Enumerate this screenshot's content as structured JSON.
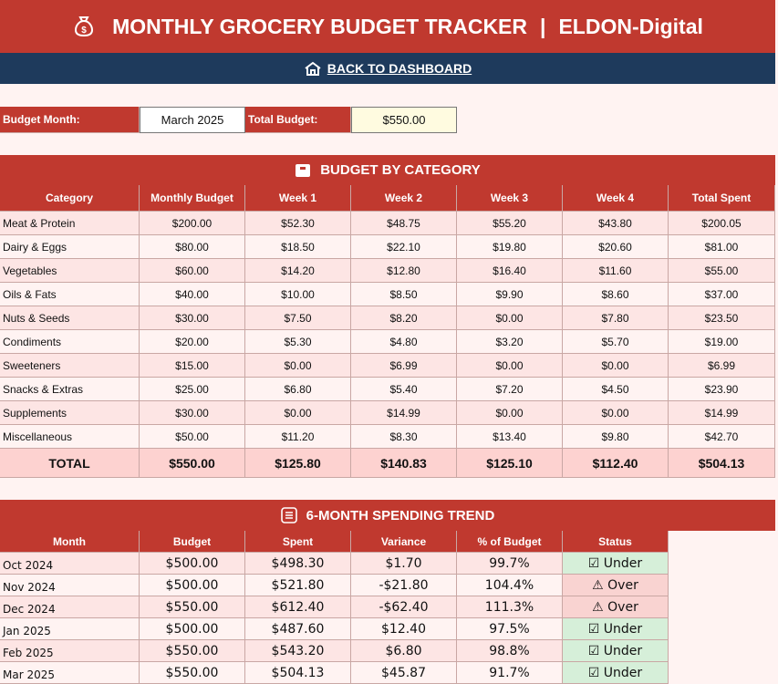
{
  "header": {
    "title": "MONTHLY GROCERY BUDGET TRACKER",
    "separator": "|",
    "brand": "ELDON-Digital"
  },
  "nav": {
    "link": "BACK TO DASHBOARD"
  },
  "budget_info": {
    "month_label": "Budget Month:",
    "month": "March 2025",
    "total_label": "Total Budget:",
    "total": "$550.00"
  },
  "category": {
    "title": "BUDGET BY CATEGORY",
    "columns": [
      "Category",
      "Monthly Budget",
      "Week 1",
      "Week 2",
      "Week 3",
      "Week 4",
      "Total Spent"
    ],
    "rows": [
      [
        "Meat & Protein",
        "$200.00",
        "$52.30",
        "$48.75",
        "$55.20",
        "$43.80",
        "$200.05"
      ],
      [
        "Dairy & Eggs",
        "$80.00",
        "$18.50",
        "$22.10",
        "$19.80",
        "$20.60",
        "$81.00"
      ],
      [
        "Vegetables",
        "$60.00",
        "$14.20",
        "$12.80",
        "$16.40",
        "$11.60",
        "$55.00"
      ],
      [
        "Oils & Fats",
        "$40.00",
        "$10.00",
        "$8.50",
        "$9.90",
        "$8.60",
        "$37.00"
      ],
      [
        "Nuts & Seeds",
        "$30.00",
        "$7.50",
        "$8.20",
        "$0.00",
        "$7.80",
        "$23.50"
      ],
      [
        "Condiments",
        "$20.00",
        "$5.30",
        "$4.80",
        "$3.20",
        "$5.70",
        "$19.00"
      ],
      [
        "Sweeteners",
        "$15.00",
        "$0.00",
        "$6.99",
        "$0.00",
        "$0.00",
        "$6.99"
      ],
      [
        "Snacks & Extras",
        "$25.00",
        "$6.80",
        "$5.40",
        "$7.20",
        "$4.50",
        "$23.90"
      ],
      [
        "Supplements",
        "$30.00",
        "$0.00",
        "$14.99",
        "$0.00",
        "$0.00",
        "$14.99"
      ],
      [
        "Miscellaneous",
        "$50.00",
        "$11.20",
        "$8.30",
        "$13.40",
        "$9.80",
        "$42.70"
      ]
    ],
    "total": [
      "TOTAL",
      "$550.00",
      "$125.80",
      "$140.83",
      "$125.10",
      "$112.40",
      "$504.13"
    ]
  },
  "trend": {
    "title": "6-MONTH SPENDING TREND",
    "columns": [
      "Month",
      "Budget",
      "Spent",
      "Variance",
      "% of Budget",
      "Status"
    ],
    "rows": [
      [
        "Oct 2024",
        "$500.00",
        "$498.30",
        "$1.70",
        "99.7%",
        "☑ Under"
      ],
      [
        "Nov 2024",
        "$500.00",
        "$521.80",
        "-$21.80",
        "104.4%",
        "⚠ Over"
      ],
      [
        "Dec 2024",
        "$550.00",
        "$612.40",
        "-$62.40",
        "111.3%",
        "⚠ Over"
      ],
      [
        "Jan 2025",
        "$500.00",
        "$487.60",
        "$12.40",
        "97.5%",
        "☑ Under"
      ],
      [
        "Feb 2025",
        "$550.00",
        "$543.20",
        "$6.80",
        "98.8%",
        "☑ Under"
      ],
      [
        "Mar 2025",
        "$550.00",
        "$504.13",
        "$45.87",
        "91.7%",
        "☑ Under"
      ]
    ]
  }
}
